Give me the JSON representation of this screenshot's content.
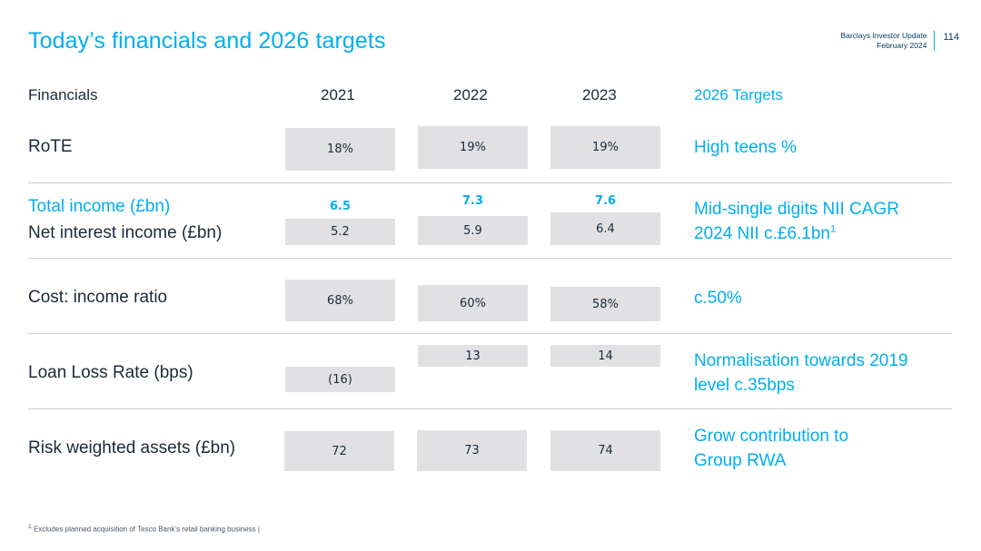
{
  "header": {
    "title": "Today’s financials and 2026 targets",
    "source_line1": "Barclays Investor Update",
    "source_line2": "February 2024",
    "page_number": "114"
  },
  "columns": {
    "label": "Financials",
    "years": [
      "2021",
      "2022",
      "2023"
    ],
    "targets": "2026 Targets"
  },
  "chart_data": {
    "type": "table",
    "title": "Today’s financials and 2026 targets",
    "columns": [
      "Financials",
      "2021",
      "2022",
      "2023",
      "2026 Targets"
    ],
    "rows": [
      {
        "label": "RoTE",
        "values": [
          "18%",
          "19%",
          "19%"
        ],
        "target": "High teens %",
        "target_line2": ""
      },
      {
        "label": "Total income (£bn)",
        "values": [
          "6.5",
          "7.3",
          "7.6"
        ],
        "target": "Mid-single digits NII CAGR",
        "target_line2": "2024 NII c.£6.1bn"
      },
      {
        "label": "Net interest income (£bn)",
        "values": [
          "5.2",
          "5.9",
          "6.4"
        ],
        "target": "",
        "target_line2": ""
      },
      {
        "label": "Cost: income ratio",
        "values": [
          "68%",
          "60%",
          "58%"
        ],
        "target": "c.50%",
        "target_line2": ""
      },
      {
        "label": "Loan Loss Rate (bps)",
        "values": [
          "(16)",
          "13",
          "14"
        ],
        "target": "Normalisation towards 2019",
        "target_line2": "level c.35bps"
      },
      {
        "label": "Risk weighted assets (£bn)",
        "values": [
          "72",
          "73",
          "74"
        ],
        "target": "Grow contribution to",
        "target_line2": "Group RWA"
      }
    ]
  },
  "footnote": {
    "marker": "1",
    "text": "Excludes planned acquisition of Tesco Bank’s retail banking business |"
  },
  "superscript": "1",
  "colors": {
    "accent": "#00aeef",
    "navy": "#00395d",
    "box": "#e1e1e3"
  }
}
